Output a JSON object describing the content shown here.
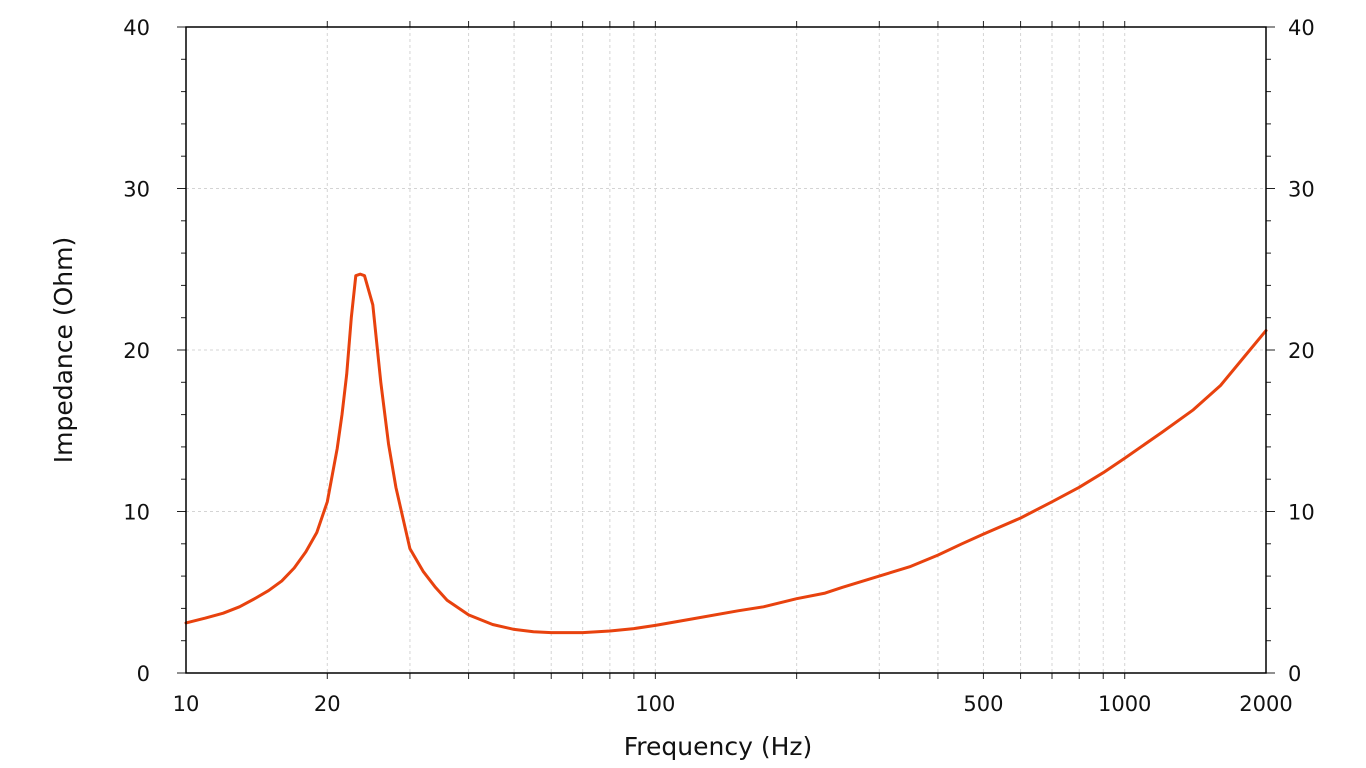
{
  "chart_data": {
    "type": "line",
    "title": "",
    "xlabel": "Frequency (Hz)",
    "ylabel": "Impedance (Ohm)",
    "x_scale": "log",
    "xlim": [
      10,
      2000
    ],
    "ylim": [
      0,
      40
    ],
    "x_tick_labels": [
      "10",
      "20",
      "100",
      "500",
      "1000",
      "2000"
    ],
    "y_tick_labels": [
      "0",
      "10",
      "20",
      "30",
      "40"
    ],
    "right_y_tick_labels": [
      "0",
      "10",
      "20",
      "30",
      "40"
    ],
    "grid": true,
    "line_color": "#E8420E",
    "series": [
      {
        "x": [
          10,
          11,
          12,
          13,
          14,
          15,
          16,
          17,
          18,
          19,
          20,
          21,
          21.5,
          22,
          22.5,
          23,
          23.5,
          24,
          25,
          26,
          27,
          28,
          30,
          32,
          34,
          36,
          40,
          45,
          50,
          55,
          60,
          70,
          80,
          90,
          100,
          120,
          150,
          170,
          200,
          230,
          250,
          300,
          350,
          400,
          450,
          500,
          600,
          700,
          800,
          900,
          1000,
          1200,
          1400,
          1600,
          1800,
          2000
        ],
        "y": [
          3.1,
          3.4,
          3.7,
          4.1,
          4.6,
          5.1,
          5.7,
          6.5,
          7.5,
          8.7,
          10.6,
          13.9,
          16.0,
          18.5,
          22.0,
          24.6,
          24.7,
          24.6,
          22.8,
          18.0,
          14.2,
          11.5,
          7.7,
          6.3,
          5.3,
          4.5,
          3.6,
          3.0,
          2.7,
          2.55,
          2.5,
          2.5,
          2.6,
          2.75,
          2.95,
          3.35,
          3.85,
          4.1,
          4.6,
          4.95,
          5.3,
          6.0,
          6.6,
          7.3,
          8.0,
          8.6,
          9.6,
          10.6,
          11.5,
          12.4,
          13.3,
          14.9,
          16.3,
          17.8,
          19.6,
          21.2
        ]
      }
    ]
  }
}
